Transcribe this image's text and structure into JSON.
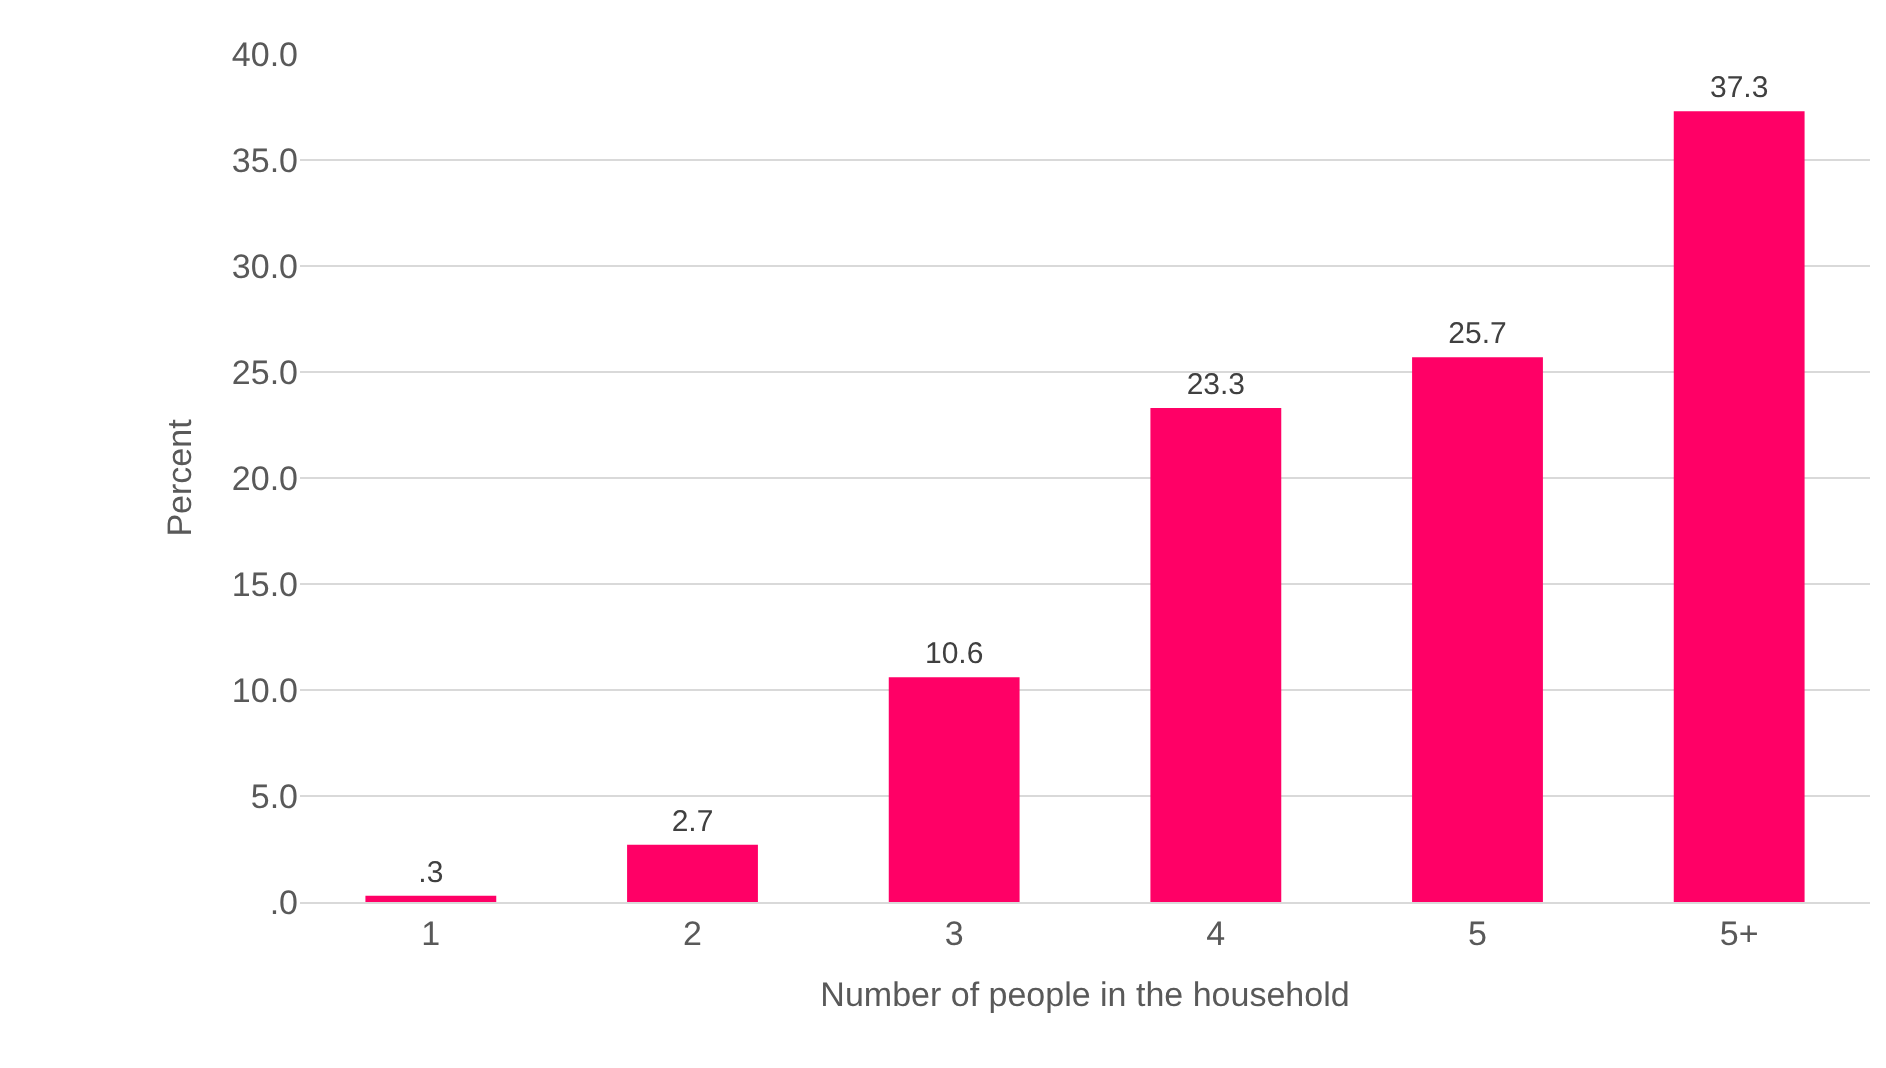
{
  "chart_data": {
    "type": "bar",
    "xlabel": "Number of people in the household",
    "ylabel": "Percent",
    "categories": [
      "1",
      "2",
      "3",
      "4",
      "5",
      "5+"
    ],
    "values": [
      0.3,
      2.7,
      10.6,
      23.3,
      25.7,
      37.3
    ],
    "value_labels": [
      ".3",
      "2.7",
      "10.6",
      "23.3",
      "25.7",
      "37.3"
    ],
    "color": "#ff0066",
    "ylim": [
      0,
      40
    ],
    "yticks": [
      {
        "value": 0,
        "label": ".0"
      },
      {
        "value": 5,
        "label": "5.0"
      },
      {
        "value": 10,
        "label": "10.0"
      },
      {
        "value": 15,
        "label": "15.0"
      },
      {
        "value": 20,
        "label": "20.0"
      },
      {
        "value": 25,
        "label": "25.0"
      },
      {
        "value": 30,
        "label": "30.0"
      },
      {
        "value": 35,
        "label": "35.0"
      },
      {
        "value": 40,
        "label": "40.0"
      }
    ],
    "grid": "y"
  }
}
